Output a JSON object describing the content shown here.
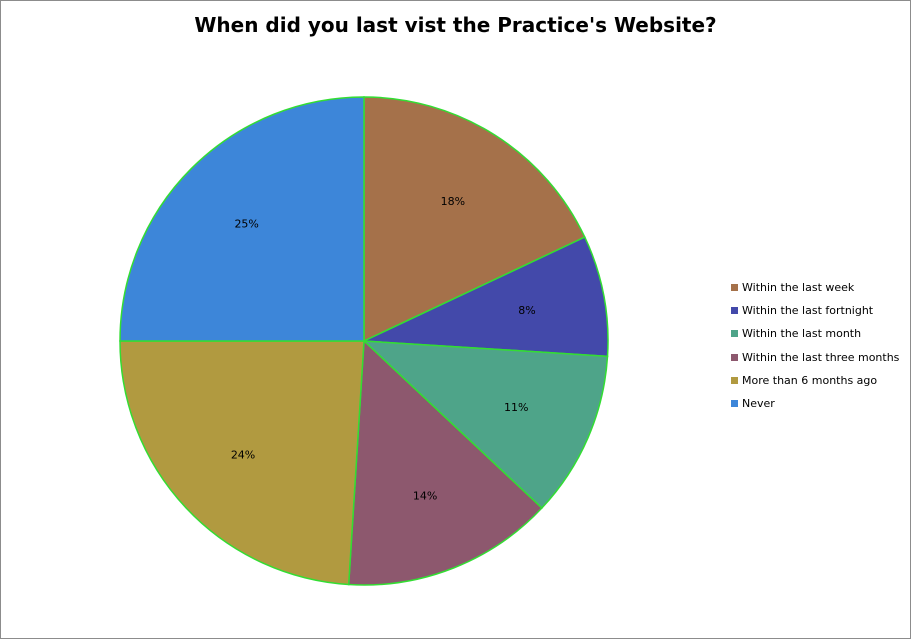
{
  "chart_data": {
    "type": "pie",
    "title": "When did you last vist the Practice's Website?",
    "slices": [
      {
        "label": "Within the last week",
        "value": 18,
        "display": "18%",
        "color": "#A5714A"
      },
      {
        "label": "Within the last fortnight",
        "value": 8,
        "display": "8%",
        "color": "#4349AA"
      },
      {
        "label": "Within the last month",
        "value": 11,
        "display": "11%",
        "color": "#4EA489"
      },
      {
        "label": "Within the last three months",
        "value": 14,
        "display": "14%",
        "color": "#8D586E"
      },
      {
        "label": "More than 6 months ago",
        "value": 24,
        "display": "24%",
        "color": "#B19A40"
      },
      {
        "label": "Never",
        "value": 25,
        "display": "25%",
        "color": "#3D86D9"
      }
    ],
    "start": "12 o'clock",
    "direction": "clockwise",
    "border_color": "#33DD33",
    "legend_position": "right"
  }
}
